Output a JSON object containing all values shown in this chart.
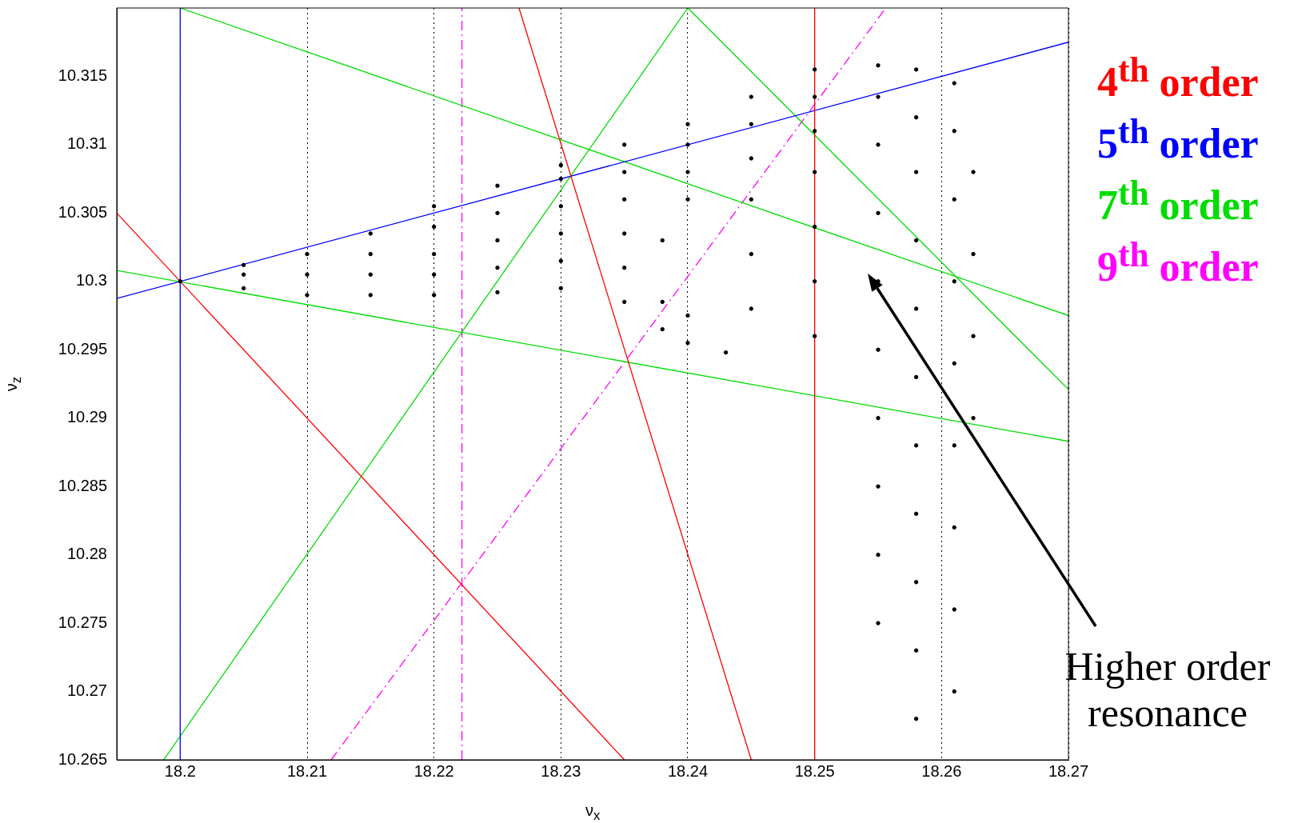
{
  "chart_data": {
    "type": "scatter",
    "xlabel": "ν$_{x}$",
    "ylabel": "ν$_{z}$",
    "xlim": [
      18.195,
      18.27
    ],
    "ylim": [
      10.265,
      10.32
    ],
    "xticks": [
      18.2,
      18.21,
      18.22,
      18.23,
      18.24,
      18.25,
      18.26,
      18.27
    ],
    "yticks": [
      10.265,
      10.27,
      10.275,
      10.28,
      10.285,
      10.29,
      10.295,
      10.3,
      10.305,
      10.31,
      10.315
    ],
    "grid": "x",
    "legend": "right",
    "annotations": [
      "Higher order resonance"
    ],
    "series": [
      {
        "type": "scatter",
        "color": "#000000",
        "marker": "circle",
        "x": [
          18.2,
          18.205,
          18.205,
          18.205,
          18.21,
          18.21,
          18.21,
          18.215,
          18.215,
          18.215,
          18.215,
          18.22,
          18.22,
          18.22,
          18.22,
          18.22,
          18.225,
          18.225,
          18.225,
          18.225,
          18.225,
          18.23,
          18.23,
          18.23,
          18.23,
          18.23,
          18.23,
          18.235,
          18.235,
          18.235,
          18.235,
          18.235,
          18.235,
          18.238,
          18.238,
          18.238,
          18.24,
          18.24,
          18.24,
          18.24,
          18.24,
          18.24,
          18.243,
          18.245,
          18.245,
          18.245,
          18.245,
          18.245,
          18.245,
          18.25,
          18.25,
          18.25,
          18.25,
          18.25,
          18.25,
          18.25,
          18.255,
          18.255,
          18.255,
          18.255,
          18.255,
          18.255,
          18.255,
          18.255,
          18.255,
          18.255,
          18.258,
          18.258,
          18.258,
          18.258,
          18.258,
          18.258,
          18.258,
          18.258,
          18.258,
          18.258,
          18.258,
          18.261,
          18.261,
          18.261,
          18.261,
          18.261,
          18.261,
          18.261,
          18.261,
          18.261,
          18.2625,
          18.2625,
          18.2625,
          18.2625
        ],
        "values": [
          10.3,
          10.2995,
          10.3005,
          10.3012,
          10.299,
          10.3005,
          10.302,
          10.299,
          10.3005,
          10.302,
          10.3035,
          10.299,
          10.3005,
          10.302,
          10.304,
          10.3055,
          10.2992,
          10.301,
          10.303,
          10.305,
          10.307,
          10.2995,
          10.3015,
          10.3035,
          10.3055,
          10.3075,
          10.3085,
          10.2985,
          10.301,
          10.3035,
          10.306,
          10.308,
          10.31,
          10.2965,
          10.2985,
          10.303,
          10.2955,
          10.2975,
          10.306,
          10.308,
          10.31,
          10.3115,
          10.2948,
          10.298,
          10.302,
          10.306,
          10.309,
          10.3115,
          10.3135,
          10.296,
          10.3,
          10.304,
          10.308,
          10.311,
          10.3135,
          10.3155,
          10.275,
          10.28,
          10.285,
          10.29,
          10.295,
          10.3,
          10.305,
          10.31,
          10.3135,
          10.3158,
          10.268,
          10.273,
          10.278,
          10.283,
          10.288,
          10.293,
          10.298,
          10.303,
          10.308,
          10.312,
          10.3155,
          10.27,
          10.276,
          10.282,
          10.288,
          10.294,
          10.3,
          10.306,
          10.311,
          10.3145,
          10.29,
          10.296,
          10.302,
          10.308
        ]
      },
      {
        "type": "line",
        "name": "4$^{th}$ order",
        "color": "#ff0000",
        "line_style": "solid",
        "x": [
          18.25,
          18.25
        ],
        "values": [
          10.265,
          10.32
        ]
      },
      {
        "type": "line",
        "color": "#ff0000",
        "line_style": "solid",
        "x": [
          18.195,
          18.235
        ],
        "values": [
          10.305,
          10.265
        ]
      },
      {
        "type": "line",
        "color": "#ff0000",
        "line_style": "solid",
        "x": [
          18.2267,
          18.245
        ],
        "values": [
          10.32,
          10.265
        ]
      },
      {
        "type": "line",
        "name": "5$^{th}$ order",
        "color": "#0000ff",
        "line_style": "solid",
        "x": [
          18.2,
          18.2
        ],
        "values": [
          10.265,
          10.32
        ]
      },
      {
        "type": "line",
        "color": "#0000ff",
        "line_style": "solid",
        "x": [
          18.195,
          18.27
        ],
        "values": [
          10.29875,
          10.3175
        ]
      },
      {
        "type": "line",
        "name": "7$^{th}$ order",
        "color": "#00dd00",
        "line_style": "solid",
        "x": [
          18.2,
          18.27
        ],
        "values": [
          10.32,
          10.2975
        ]
      },
      {
        "type": "line",
        "color": "#00dd00",
        "line_style": "solid",
        "x": [
          18.195,
          18.27
        ],
        "values": [
          10.3008,
          10.2883
        ]
      },
      {
        "type": "line",
        "color": "#00dd00",
        "line_style": "solid",
        "x": [
          18.1987,
          18.24
        ],
        "values": [
          10.265,
          10.32
        ]
      },
      {
        "type": "line",
        "color": "#00dd00",
        "line_style": "solid",
        "x": [
          18.24,
          18.27
        ],
        "values": [
          10.32,
          10.2921
        ]
      },
      {
        "type": "line",
        "name": "9$^{th}$ order",
        "color": "#ff00ff",
        "line_style": "dashed",
        "x": [
          18.2222,
          18.2222
        ],
        "values": [
          10.265,
          10.32
        ]
      },
      {
        "type": "line",
        "color": "#ff00ff",
        "line_style": "dashed",
        "x": [
          18.2119,
          18.2556
        ],
        "values": [
          10.265,
          10.32
        ]
      }
    ]
  }
}
